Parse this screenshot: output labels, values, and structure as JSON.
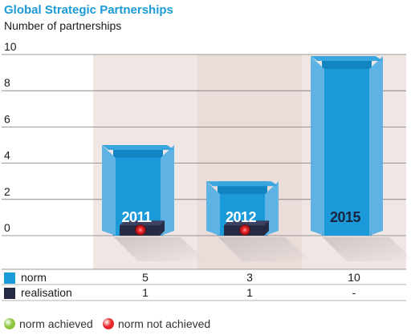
{
  "chart_data": {
    "type": "bar",
    "title": "Global Strategic Partnerships",
    "subtitle": "Number of partnerships",
    "categories": [
      "2011",
      "2012",
      "2015"
    ],
    "series": [
      {
        "name": "norm",
        "values": [
          5,
          3,
          10
        ]
      },
      {
        "name": "realisation",
        "values": [
          1,
          1,
          null
        ]
      }
    ],
    "status": [
      "norm not achieved",
      "norm not achieved",
      null
    ],
    "yticks": [
      "0",
      "2",
      "4",
      "6",
      "8",
      "10"
    ],
    "ylim": [
      0,
      10
    ],
    "table": {
      "rows": [
        {
          "label": "norm",
          "cells": [
            "5",
            "3",
            "10"
          ]
        },
        {
          "label": "realisation",
          "cells": [
            "1",
            "1",
            "-"
          ]
        }
      ]
    },
    "legend": [
      {
        "label": "norm achieved",
        "color": "#8cc63f"
      },
      {
        "label": "norm not achieved",
        "color": "#e8262a"
      }
    ],
    "colors": {
      "norm": "#1a9ad9",
      "norm_side": "#5eb3e4",
      "realisation": "#262a45",
      "accent": "#1b9ad6",
      "band1": "#f0e6e3",
      "band2": "#e9dcd9"
    }
  }
}
